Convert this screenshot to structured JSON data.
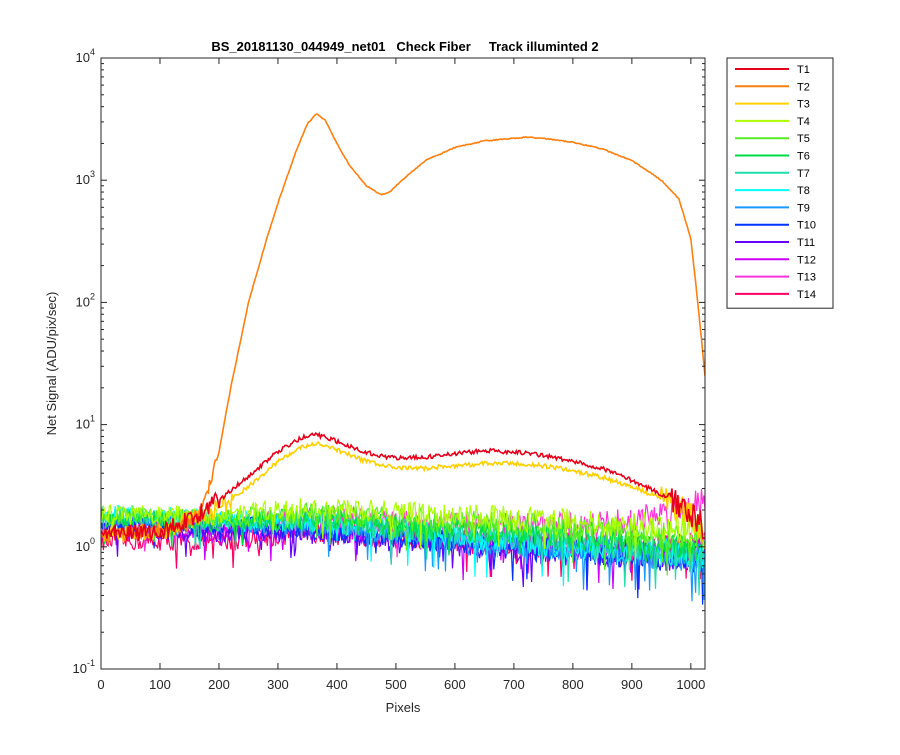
{
  "chart_data": {
    "type": "line",
    "title": "BS_20181130_044949_net01   Check Fiber     Track illuminted 2",
    "xlabel": "Pixels",
    "ylabel": "Net Signal (ADU/pix/sec)",
    "xlim": [
      0,
      1024
    ],
    "ylim": [
      0.1,
      10000
    ],
    "yscale": "log",
    "xticks": [
      0,
      100,
      200,
      300,
      400,
      500,
      600,
      700,
      800,
      900,
      1000
    ],
    "yticks": [
      {
        "base": "10",
        "exp": "-1",
        "value": 0.1
      },
      {
        "base": "10",
        "exp": "0",
        "value": 1
      },
      {
        "base": "10",
        "exp": "1",
        "value": 10
      },
      {
        "base": "10",
        "exp": "2",
        "value": 100
      },
      {
        "base": "10",
        "exp": "3",
        "value": 1000
      },
      {
        "base": "10",
        "exp": "4",
        "value": 10000
      }
    ],
    "grid": false,
    "legend_position": "outside-right",
    "series": [
      {
        "name": "T1",
        "color": "#e6001a",
        "x": [
          0,
          100,
          170,
          200,
          250,
          300,
          340,
          365,
          400,
          450,
          500,
          550,
          600,
          650,
          700,
          750,
          800,
          850,
          900,
          950,
          1000,
          1024
        ],
        "values": [
          1.3,
          1.3,
          1.9,
          2.4,
          3.8,
          6.0,
          7.8,
          8.3,
          7.3,
          5.9,
          5.3,
          5.4,
          5.8,
          6.1,
          6.0,
          5.6,
          5.0,
          4.4,
          3.5,
          2.7,
          1.9,
          1.4
        ]
      },
      {
        "name": "T2",
        "color": "#ff7f0e",
        "x": [
          0,
          150,
          170,
          180,
          200,
          220,
          250,
          280,
          300,
          330,
          350,
          365,
          380,
          400,
          420,
          450,
          475,
          490,
          500,
          530,
          550,
          600,
          650,
          700,
          720,
          750,
          800,
          850,
          900,
          950,
          980,
          1000,
          1010,
          1020,
          1024
        ],
        "values": [
          1.2,
          1.5,
          2.2,
          2.6,
          6,
          20,
          100,
          320,
          650,
          1700,
          2900,
          3500,
          3100,
          2000,
          1350,
          900,
          760,
          800,
          900,
          1200,
          1450,
          1850,
          2100,
          2200,
          2250,
          2200,
          2050,
          1800,
          1450,
          1000,
          700,
          330,
          120,
          40,
          25
        ]
      },
      {
        "name": "T3",
        "color": "#ffd000",
        "x": [
          0,
          100,
          170,
          200,
          250,
          300,
          340,
          365,
          400,
          450,
          500,
          550,
          600,
          650,
          700,
          750,
          800,
          850,
          900,
          950,
          1000,
          1024
        ],
        "values": [
          1.3,
          1.3,
          1.8,
          2.1,
          3.1,
          5.0,
          6.5,
          7.0,
          6.2,
          5.0,
          4.4,
          4.4,
          4.6,
          4.8,
          4.8,
          4.6,
          4.2,
          3.7,
          3.1,
          2.5,
          1.8,
          1.2
        ]
      },
      {
        "name": "T4",
        "color": "#aaff00",
        "x": [
          0,
          200,
          350,
          500,
          700,
          900,
          1024
        ],
        "values": [
          1.9,
          1.8,
          2.1,
          1.9,
          1.7,
          1.5,
          1.4
        ]
      },
      {
        "name": "T5",
        "color": "#55ee22",
        "x": [
          0,
          200,
          350,
          500,
          700,
          900,
          1024
        ],
        "values": [
          1.8,
          1.7,
          1.9,
          1.7,
          1.5,
          1.3,
          1.2
        ]
      },
      {
        "name": "T6",
        "color": "#00dd44",
        "x": [
          0,
          200,
          350,
          500,
          700,
          900,
          1024
        ],
        "values": [
          1.7,
          1.6,
          1.7,
          1.5,
          1.3,
          1.1,
          0.9
        ]
      },
      {
        "name": "T7",
        "color": "#22ddaa",
        "x": [
          0,
          200,
          350,
          500,
          700,
          900,
          1024
        ],
        "values": [
          1.8,
          1.6,
          1.6,
          1.4,
          1.2,
          1.0,
          0.9
        ]
      },
      {
        "name": "T8",
        "color": "#00ffff",
        "x": [
          0,
          200,
          350,
          500,
          700,
          900,
          1024
        ],
        "values": [
          1.9,
          1.7,
          1.6,
          1.4,
          1.1,
          0.95,
          0.85
        ]
      },
      {
        "name": "T9",
        "color": "#1a99ff",
        "x": [
          0,
          200,
          350,
          500,
          700,
          900,
          1024
        ],
        "values": [
          1.8,
          1.6,
          1.5,
          1.3,
          1.05,
          0.9,
          0.8
        ]
      },
      {
        "name": "T10",
        "color": "#0033ff",
        "x": [
          0,
          200,
          350,
          500,
          700,
          900,
          1024
        ],
        "values": [
          1.6,
          1.5,
          1.4,
          1.2,
          1.0,
          0.85,
          0.8
        ]
      },
      {
        "name": "T11",
        "color": "#6600ff",
        "x": [
          0,
          200,
          350,
          500,
          700,
          900,
          1024
        ],
        "values": [
          1.4,
          1.3,
          1.3,
          1.1,
          0.95,
          0.85,
          0.8
        ]
      },
      {
        "name": "T12",
        "color": "#cc00ff",
        "x": [
          0,
          200,
          350,
          500,
          700,
          900,
          1024
        ],
        "values": [
          1.3,
          1.3,
          1.4,
          1.2,
          1.05,
          0.95,
          0.95
        ]
      },
      {
        "name": "T13",
        "color": "#ff33dd",
        "x": [
          0,
          200,
          350,
          500,
          650,
          800,
          900,
          950,
          1000,
          1024
        ],
        "values": [
          1.5,
          1.4,
          1.8,
          1.6,
          1.5,
          1.5,
          1.6,
          1.9,
          2.3,
          2.5
        ]
      },
      {
        "name": "T14",
        "color": "#ff0066",
        "x": [
          0,
          200,
          350,
          500,
          700,
          900,
          1024
        ],
        "values": [
          1.1,
          1.1,
          1.3,
          1.2,
          1.05,
          1.0,
          1.0
        ]
      }
    ]
  }
}
